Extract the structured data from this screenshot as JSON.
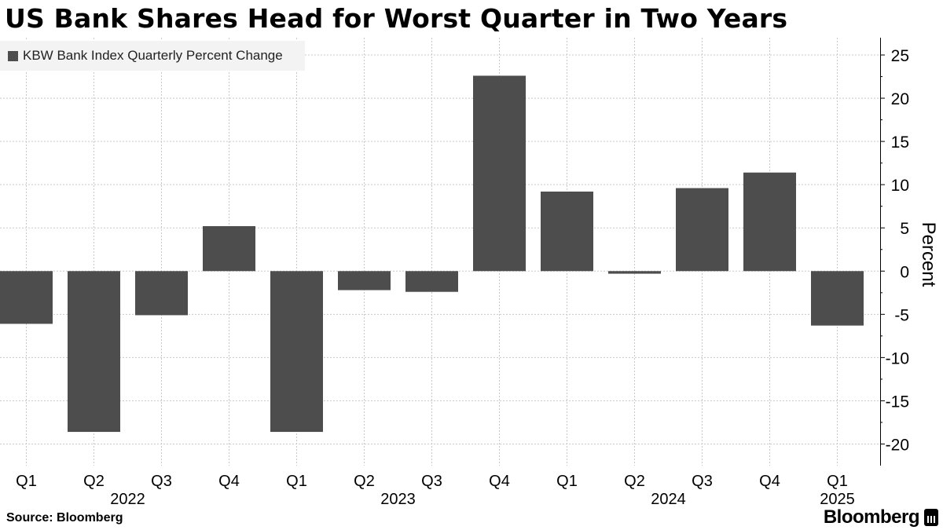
{
  "header": {
    "title": "US Bank Shares Head for Worst Quarter in Two Years"
  },
  "legend": {
    "label": "KBW Bank Index Quarterly Percent Change"
  },
  "footer": {
    "source": "Source: Bloomberg",
    "brand": "Bloomberg"
  },
  "colors": {
    "bar": "#4d4d4d",
    "grid": "#c8c8c8",
    "legend_bg": "#f3f3f3"
  },
  "chart_data": {
    "type": "bar",
    "title": "US Bank Shares Head for Worst Quarter in Two Years",
    "series_name": "KBW Bank Index Quarterly Percent Change",
    "categories": [
      "Q1",
      "Q2",
      "Q3",
      "Q4",
      "Q1",
      "Q2",
      "Q3",
      "Q4",
      "Q1",
      "Q2",
      "Q3",
      "Q4",
      "Q1"
    ],
    "years": [
      {
        "label": "2022",
        "start": 0,
        "end": 3
      },
      {
        "label": "2023",
        "start": 4,
        "end": 7
      },
      {
        "label": "2024",
        "start": 8,
        "end": 11
      },
      {
        "label": "2025",
        "start": 12,
        "end": 12
      }
    ],
    "values": [
      -6.1,
      -18.6,
      -5.1,
      5.2,
      -18.6,
      -2.2,
      -2.4,
      22.6,
      9.2,
      -0.3,
      9.6,
      11.4,
      -6.3
    ],
    "ylabel": "Percent",
    "ylim": [
      -22.5,
      27
    ],
    "yticks": [
      25,
      20,
      15,
      10,
      5,
      0,
      -5,
      -10,
      -15,
      -20
    ],
    "ytick_labels": [
      "25",
      "20",
      "15",
      "10",
      "5",
      "0",
      "-5",
      "-10",
      "-15",
      "-20"
    ],
    "y_axis_side": "right",
    "grid": true
  }
}
